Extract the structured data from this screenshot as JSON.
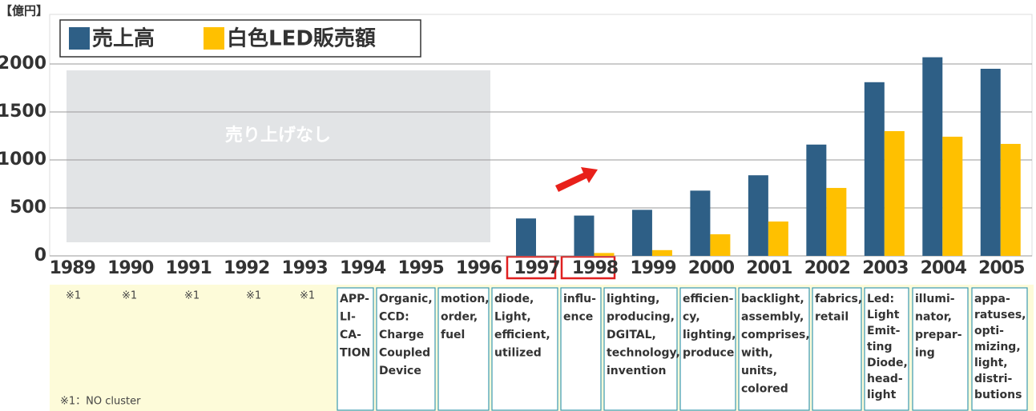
{
  "chart_data": {
    "type": "bar",
    "unit_label": "【億円】",
    "annotation": "売り上げなし",
    "categories": [
      "1989",
      "1990",
      "1991",
      "1992",
      "1993",
      "1994",
      "1995",
      "1996",
      "1997",
      "1998",
      "1999",
      "2000",
      "2001",
      "2002",
      "2003",
      "2004",
      "2005"
    ],
    "series": [
      {
        "name": "売上高",
        "color": "#2e5f86",
        "values": [
          null,
          null,
          null,
          null,
          null,
          null,
          null,
          null,
          390,
          420,
          480,
          680,
          840,
          1160,
          1810,
          2070,
          1950
        ]
      },
      {
        "name": "白色LED販売額",
        "color": "#ffc000",
        "values": [
          null,
          null,
          null,
          null,
          null,
          null,
          null,
          null,
          null,
          30,
          60,
          225,
          358,
          708,
          1300,
          1242,
          1167
        ]
      }
    ],
    "ylim": [
      0,
      2500
    ],
    "yticks": [
      0,
      500,
      1000,
      1500,
      2000
    ],
    "grid": true
  },
  "keyword_table": {
    "footnote_marks": [
      "※1",
      "※1",
      "※1",
      "※1",
      "※1"
    ],
    "footnote": "※1：NO  cluster",
    "cells": [
      {
        "lines": [
          "APP-",
          "LI-",
          "CA-",
          "TION"
        ]
      },
      {
        "lines": [
          "Organic,",
          "CCD:",
          "Charge",
          "Coupled",
          "Device"
        ]
      },
      {
        "lines": [
          "motion,",
          "order,",
          "fuel"
        ]
      },
      {
        "lines": [
          "diode,",
          "Light,",
          "efficient,",
          "utilized"
        ]
      },
      {
        "lines": [
          "influ-",
          "ence"
        ]
      },
      {
        "lines": [
          "lighting,",
          "producing,",
          "DGITAL,",
          "technology,",
          "invention"
        ]
      },
      {
        "lines": [
          "efficien-",
          "cy,",
          "lighting,",
          "produce"
        ]
      },
      {
        "lines": [
          "backlight,",
          "assembly,",
          "comprises,",
          "with,",
          "units,",
          "colored"
        ]
      },
      {
        "lines": [
          "fabrics,",
          "retail"
        ]
      },
      {
        "lines": [
          "Led:",
          "Light",
          "Emit-",
          "ting",
          "Diode,",
          "head-",
          "light"
        ]
      },
      {
        "lines": [
          "illumi-",
          "nator,",
          "prepar-",
          "ing"
        ]
      },
      {
        "lines": [
          "appa-",
          "ratuses,",
          "opti-",
          "mizing,",
          "light,",
          "distri-",
          "butions"
        ]
      }
    ]
  }
}
